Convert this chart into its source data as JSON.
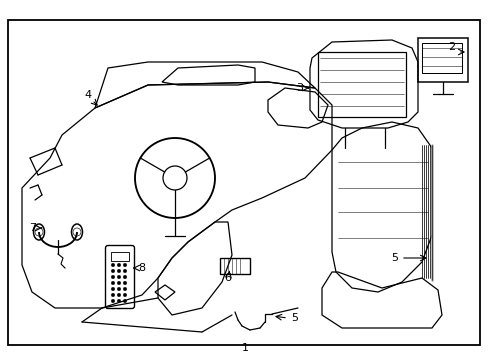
{
  "background_color": "#ffffff",
  "border_color": "#000000",
  "line_color": "#000000",
  "label_color": "#000000",
  "figsize": [
    4.89,
    3.6
  ],
  "dpi": 100
}
